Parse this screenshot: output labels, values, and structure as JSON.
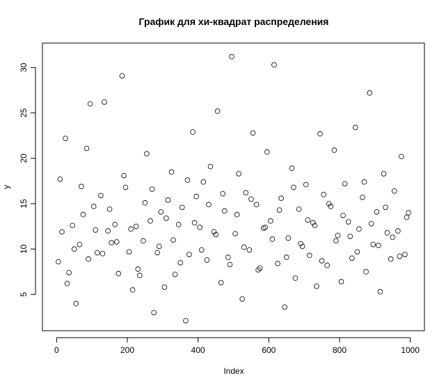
{
  "chart_data": {
    "type": "scatter",
    "title": "График для хи-квадрат распределения",
    "xlabel": "Index",
    "ylabel": "y",
    "xlim": [
      0,
      1000
    ],
    "ylim": [
      2,
      31
    ],
    "x_ticks": [
      0,
      200,
      400,
      600,
      800,
      1000
    ],
    "y_ticks": [
      5,
      10,
      15,
      20,
      25,
      30
    ],
    "grid": false,
    "legend": "none",
    "marker": "open-circle",
    "series": [
      {
        "x": [
          5,
          15,
          25,
          35,
          45,
          55,
          65,
          75,
          85,
          95,
          105,
          115,
          125,
          135,
          145,
          155,
          165,
          175,
          185,
          195,
          205,
          215,
          225,
          235,
          245,
          255,
          265,
          275,
          285,
          295,
          305,
          315,
          325,
          335,
          345,
          355,
          365,
          375,
          385,
          395,
          405,
          415,
          425,
          435,
          445,
          455,
          465,
          475,
          485,
          495,
          505,
          515,
          525,
          535,
          545,
          555,
          565,
          575,
          585,
          595,
          605,
          615,
          625,
          635,
          645,
          655,
          665,
          675,
          685,
          695,
          705,
          715,
          725,
          735,
          745,
          755,
          765,
          775,
          785,
          795,
          805,
          815,
          825,
          835,
          845,
          855,
          865,
          875,
          885,
          895,
          905,
          915,
          925,
          935,
          945,
          955,
          965,
          975,
          985,
          995,
          10,
          30,
          50,
          70,
          90,
          110,
          130,
          150,
          170,
          190,
          210,
          230,
          250,
          270,
          290,
          310,
          330,
          350,
          370,
          390,
          410,
          430,
          450,
          470,
          490,
          510,
          530,
          550,
          570,
          590,
          610,
          630,
          650,
          670,
          690,
          710,
          730,
          750,
          770,
          790,
          810,
          830,
          850,
          870,
          890,
          910,
          930,
          950,
          970,
          990
        ],
        "y": [
          8.6,
          11.9,
          22.2,
          7.4,
          12.6,
          4.0,
          10.5,
          13.8,
          21.1,
          26.0,
          14.7,
          9.6,
          15.9,
          26.2,
          12.0,
          10.7,
          12.7,
          7.3,
          29.1,
          16.8,
          9.7,
          5.5,
          12.5,
          7.1,
          10.9,
          20.5,
          13.1,
          3.0,
          9.6,
          14.1,
          5.8,
          15.4,
          18.5,
          7.2,
          12.7,
          14.6,
          2.1,
          9.4,
          22.9,
          15.8,
          12.4,
          17.4,
          8.8,
          19.1,
          11.9,
          25.2,
          6.3,
          14.2,
          9.1,
          31.2,
          11.7,
          18.3,
          4.5,
          16.2,
          9.9,
          22.8,
          14.9,
          7.9,
          12.3,
          20.7,
          13.1,
          30.3,
          8.4,
          15.6,
          3.6,
          11.2,
          18.9,
          6.8,
          14.4,
          10.3,
          17.1,
          9.3,
          12.9,
          5.9,
          22.7,
          16.0,
          8.2,
          14.7,
          20.9,
          11.5,
          6.4,
          17.2,
          13.0,
          9.0,
          23.4,
          12.2,
          15.7,
          7.5,
          27.2,
          10.5,
          14.1,
          5.3,
          18.3,
          11.8,
          8.9,
          16.4,
          12.0,
          20.2,
          9.4,
          14.0,
          17.7,
          6.2,
          10.0,
          16.9,
          8.9,
          12.1,
          9.5,
          14.4,
          10.8,
          18.1,
          12.2,
          7.8,
          15.1,
          16.6,
          10.3,
          13.4,
          11.0,
          8.5,
          17.6,
          12.9,
          9.9,
          14.9,
          11.6,
          16.1,
          8.3,
          13.8,
          10.2,
          15.5,
          7.7,
          12.4,
          11.1,
          14.3,
          9.1,
          16.8,
          10.6,
          13.2,
          12.6,
          8.7,
          15.0,
          10.9,
          13.7,
          11.4,
          9.7,
          17.4,
          12.8,
          10.4,
          14.6,
          11.3,
          9.2,
          13.5
        ]
      }
    ]
  }
}
